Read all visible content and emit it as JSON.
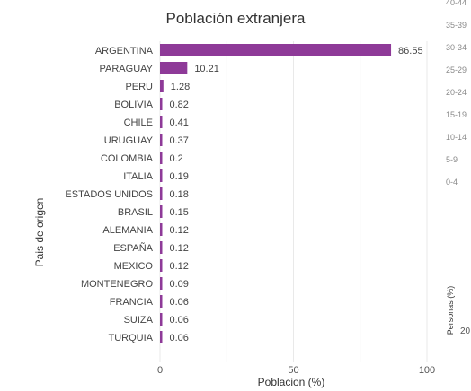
{
  "chart_data": {
    "type": "bar",
    "orientation": "horizontal",
    "title": "Población extranjera",
    "xlabel": "Poblacion (%)",
    "ylabel": "Pais de origen",
    "xlim": [
      0,
      100
    ],
    "xticks": [
      "0",
      "50",
      "100"
    ],
    "grid": true,
    "legend": "none",
    "bar_color": "#8e3a98",
    "categories": [
      "ARGENTINA",
      "PARAGUAY",
      "PERU",
      "BOLIVIA",
      "CHILE",
      "URUGUAY",
      "COLOMBIA",
      "ITALIA",
      "ESTADOS UNIDOS",
      "BRASIL",
      "ALEMANIA",
      "ESPAÑA",
      "MEXICO",
      "MONTENEGRO",
      "FRANCIA",
      "SUIZA",
      "TURQUIA"
    ],
    "values": [
      86.55,
      10.21,
      1.28,
      0.82,
      0.41,
      0.37,
      0.2,
      0.19,
      0.18,
      0.15,
      0.12,
      0.12,
      0.12,
      0.09,
      0.06,
      0.06,
      0.06
    ],
    "value_labels": [
      "86.55",
      "10.21",
      "1.28",
      "0.82",
      "0.41",
      "0.37",
      "0.2",
      "0.19",
      "0.18",
      "0.15",
      "0.12",
      "0.12",
      "0.12",
      "0.09",
      "0.06",
      "0.06",
      "0.06"
    ]
  },
  "adjacent_chart_fragment": {
    "age_groups": [
      "40-44",
      "35-39",
      "30-34",
      "25-29",
      "20-24",
      "15-19",
      "10-14",
      "5-9",
      "0-4"
    ],
    "axis_label": "Personas (%)",
    "partial_tick": "20"
  }
}
